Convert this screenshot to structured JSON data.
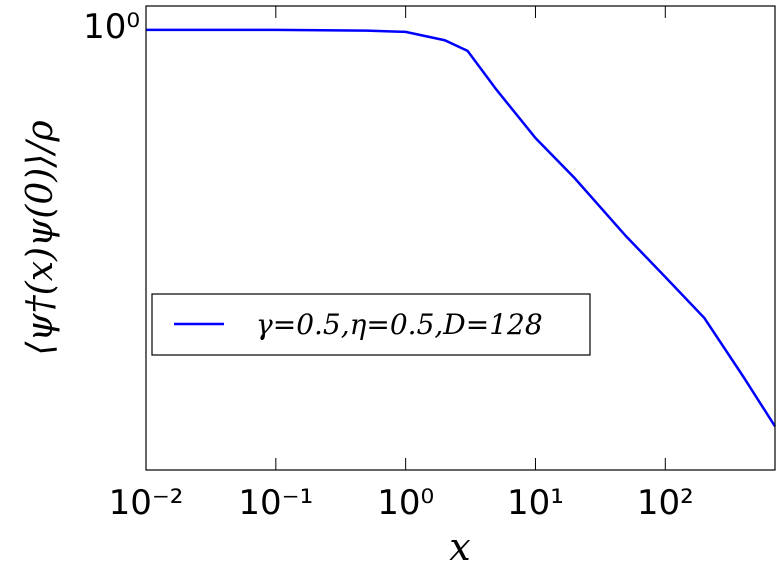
{
  "chart_data": {
    "type": "line",
    "x_label": "x",
    "y_label": "⟨ψ†(x)ψ(0)⟩/ρ",
    "x": [
      0.01,
      0.1,
      0.5,
      1,
      2,
      3,
      5,
      10,
      20,
      50,
      100,
      200,
      400,
      700
    ],
    "series": [
      {
        "name": "γ=0.5,η=0.5,D=128",
        "color": "#0000ff",
        "values": [
          0.94,
          0.94,
          0.938,
          0.935,
          0.915,
          0.89,
          0.805,
          0.71,
          0.64,
          0.55,
          0.495,
          0.445,
          0.382,
          0.336
        ]
      }
    ],
    "xlim": [
      0.01,
      700
    ],
    "ylim": [
      0.3,
      1
    ],
    "xticks": [
      {
        "value": 0.01,
        "label": "10⁻²"
      },
      {
        "value": 0.1,
        "label": "10⁻¹"
      },
      {
        "value": 1,
        "label": "10⁰"
      },
      {
        "value": 10,
        "label": "10¹"
      },
      {
        "value": 100,
        "label": "10²"
      }
    ],
    "yticks": [
      {
        "value": 1,
        "label": "10⁰"
      }
    ],
    "xscale": "log",
    "yscale": "log",
    "legend": "lower left"
  }
}
